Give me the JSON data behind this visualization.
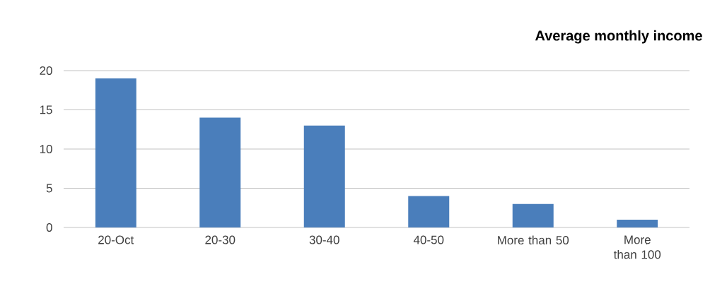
{
  "chart_data": {
    "type": "bar",
    "title": "Average monthly income",
    "categories": [
      "20-Oct",
      "20-30",
      "30-40",
      "40-50",
      "More than 50",
      "More than 100"
    ],
    "values": [
      19,
      14,
      13,
      4,
      3,
      1
    ],
    "color": "#4a7ebb",
    "ylim": [
      0,
      20
    ],
    "yticks": [
      0,
      5,
      10,
      15,
      20
    ],
    "grid": "y"
  }
}
